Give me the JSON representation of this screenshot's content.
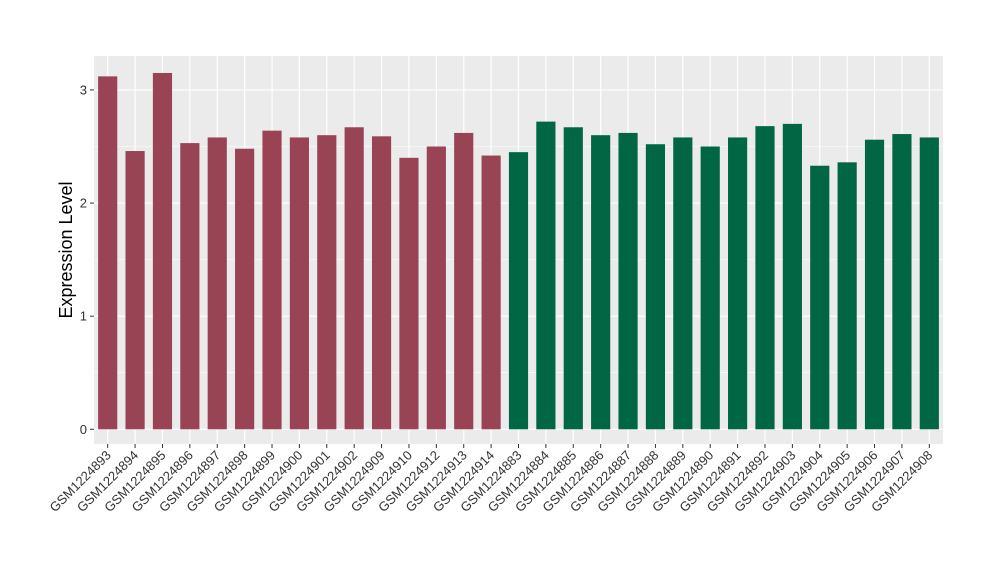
{
  "chart_data": {
    "type": "bar",
    "ylabel": "Expression Level",
    "xlabel": "",
    "ylim": [
      -0.13,
      3.3
    ],
    "yticks": [
      0,
      1,
      2,
      3
    ],
    "grid": true,
    "colors": {
      "group1": "#994455",
      "group2": "#006644",
      "panel": "#EBEBEB",
      "grid": "#FFFFFF"
    },
    "categories": [
      "GSM1224893",
      "GSM1224894",
      "GSM1224895",
      "GSM1224896",
      "GSM1224897",
      "GSM1224898",
      "GSM1224899",
      "GSM1224900",
      "GSM1224901",
      "GSM1224902",
      "GSM1224909",
      "GSM1224910",
      "GSM1224912",
      "GSM1224913",
      "GSM1224914",
      "GSM1224883",
      "GSM1224884",
      "GSM1224885",
      "GSM1224886",
      "GSM1224887",
      "GSM1224888",
      "GSM1224889",
      "GSM1224890",
      "GSM1224891",
      "GSM1224892",
      "GSM1224903",
      "GSM1224904",
      "GSM1224905",
      "GSM1224906",
      "GSM1224907",
      "GSM1224908"
    ],
    "values": [
      3.12,
      2.46,
      3.15,
      2.53,
      2.58,
      2.48,
      2.64,
      2.58,
      2.6,
      2.67,
      2.59,
      2.4,
      2.5,
      2.62,
      2.42,
      2.45,
      2.72,
      2.67,
      2.6,
      2.62,
      2.52,
      2.58,
      2.5,
      2.58,
      2.68,
      2.7,
      2.33,
      2.36,
      2.56,
      2.61,
      2.58
    ],
    "groups": [
      1,
      1,
      1,
      1,
      1,
      1,
      1,
      1,
      1,
      1,
      1,
      1,
      1,
      1,
      1,
      2,
      2,
      2,
      2,
      2,
      2,
      2,
      2,
      2,
      2,
      2,
      2,
      2,
      2,
      2,
      2
    ]
  }
}
